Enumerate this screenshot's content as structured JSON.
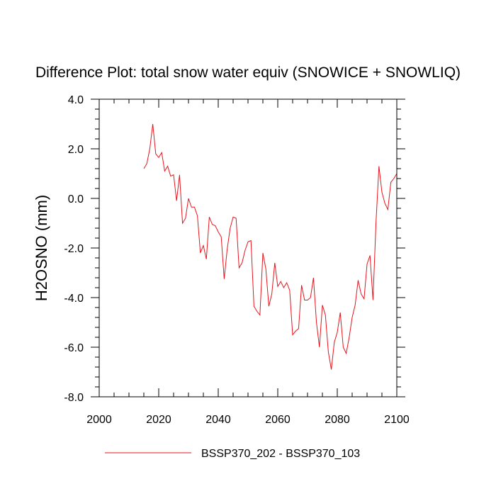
{
  "chart_data": {
    "type": "line",
    "title": "Difference Plot: total snow water equiv (SNOWICE + SNOWLIQ)",
    "xlabel": "",
    "ylabel": "H2OSNO  (mm)",
    "xlim": [
      2000,
      2100
    ],
    "ylim": [
      -8.0,
      4.0
    ],
    "xticks": [
      2000,
      2020,
      2040,
      2060,
      2080,
      2100
    ],
    "xtick_labels": [
      "2000",
      "2020",
      "2040",
      "2060",
      "2080",
      "2100"
    ],
    "yticks": [
      -8,
      -6,
      -4,
      -2,
      0,
      2,
      4
    ],
    "ytick_labels": [
      "-8.0",
      "-6.0",
      "-4.0",
      "-2.0",
      "0.0",
      "2.0",
      "4.0"
    ],
    "grid": false,
    "legend_position": "bottom",
    "series": [
      {
        "name": "BSSP370_202 - BSSP370_103",
        "color": "#e8141c",
        "x": [
          2015,
          2016,
          2017,
          2018,
          2019,
          2020,
          2021,
          2022,
          2023,
          2024,
          2025,
          2026,
          2027,
          2028,
          2029,
          2030,
          2031,
          2032,
          2033,
          2034,
          2035,
          2036,
          2037,
          2038,
          2039,
          2040,
          2041,
          2042,
          2043,
          2044,
          2045,
          2046,
          2047,
          2048,
          2049,
          2050,
          2051,
          2052,
          2053,
          2054,
          2055,
          2056,
          2057,
          2058,
          2059,
          2060,
          2061,
          2062,
          2063,
          2064,
          2065,
          2066,
          2067,
          2068,
          2069,
          2070,
          2071,
          2072,
          2073,
          2074,
          2075,
          2076,
          2077,
          2078,
          2079,
          2080,
          2081,
          2082,
          2083,
          2084,
          2085,
          2086,
          2087,
          2088,
          2089,
          2090,
          2091,
          2092,
          2093,
          2094,
          2095,
          2096,
          2097,
          2098,
          2099,
          2100
        ],
        "y": [
          1.2,
          1.4,
          2.0,
          3.0,
          1.8,
          1.65,
          1.85,
          1.1,
          1.3,
          0.9,
          0.95,
          -0.1,
          0.95,
          -1.0,
          -0.8,
          0.0,
          -0.35,
          -0.35,
          -0.7,
          -2.2,
          -1.9,
          -2.45,
          -0.75,
          -1.05,
          -1.1,
          -1.35,
          -1.55,
          -3.25,
          -2.05,
          -1.2,
          -0.75,
          -0.8,
          -2.8,
          -2.6,
          -2.1,
          -1.75,
          -1.7,
          -4.35,
          -4.55,
          -4.7,
          -2.2,
          -2.85,
          -4.35,
          -3.85,
          -2.6,
          -3.55,
          -3.35,
          -3.6,
          -3.4,
          -3.7,
          -5.5,
          -5.35,
          -5.25,
          -3.5,
          -4.1,
          -4.1,
          -4.0,
          -3.2,
          -5.0,
          -6.0,
          -4.3,
          -4.7,
          -6.2,
          -6.9,
          -5.8,
          -5.4,
          -4.6,
          -6.0,
          -6.25,
          -5.6,
          -4.8,
          -4.3,
          -3.3,
          -3.85,
          -4.05,
          -2.65,
          -2.3,
          -4.1,
          -1.0,
          1.3,
          0.25,
          -0.2,
          -0.45,
          0.65,
          0.8,
          1.0
        ]
      }
    ]
  }
}
